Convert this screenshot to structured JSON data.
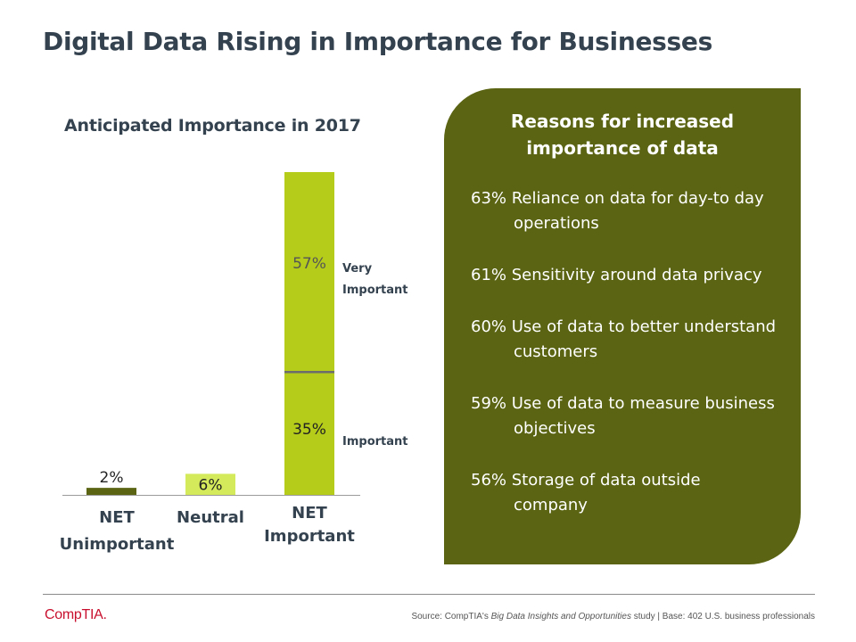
{
  "page": {
    "title": "Digital Data Rising in Importance for Businesses",
    "logo_text": "CompTIA.",
    "source": {
      "prefix": "Source: CompTIA's ",
      "study": "Big Data Insights and Opportunities",
      "suffix": " study | Base: 402 U.S. business professionals"
    }
  },
  "panel": {
    "title_line1": "Reasons for increased",
    "title_line2": "importance of data",
    "reasons": [
      "63% Reliance on data for day-to day operations",
      "61% Sensitivity around data privacy",
      "60% Use of data to better understand customers",
      "59% Use of data to measure business objectives",
      "56% Storage of data outside company"
    ]
  },
  "colors": {
    "dark_olive": "#5a6412",
    "light_green": "#b5cc1a",
    "pale_green": "#d4ea5a",
    "title_gray": "#34424f",
    "divider": "#6c6c6c"
  },
  "chart_data": {
    "type": "bar",
    "title": "Anticipated Importance in 2017",
    "categories": [
      "NET Unimportant",
      "Neutral",
      "NET Important"
    ],
    "category_lines": [
      [
        "NET",
        "Unimportant"
      ],
      [
        "Neutral"
      ],
      [
        "NET",
        "Important"
      ]
    ],
    "stacked": true,
    "series": [
      {
        "name": "Important",
        "values": [
          2,
          6,
          35
        ],
        "labels": [
          "2%",
          "6%",
          "35%"
        ]
      },
      {
        "name": "Very Important",
        "values": [
          0,
          0,
          57
        ],
        "labels": [
          "",
          "",
          "57%"
        ]
      }
    ],
    "segment_legend": [
      {
        "series": "Very Important",
        "lines": [
          "Very",
          "Important"
        ]
      },
      {
        "series": "Important",
        "lines": [
          "Important"
        ]
      }
    ],
    "ylim": [
      0,
      92
    ],
    "xlabel": "",
    "ylabel": "",
    "grid": false
  }
}
